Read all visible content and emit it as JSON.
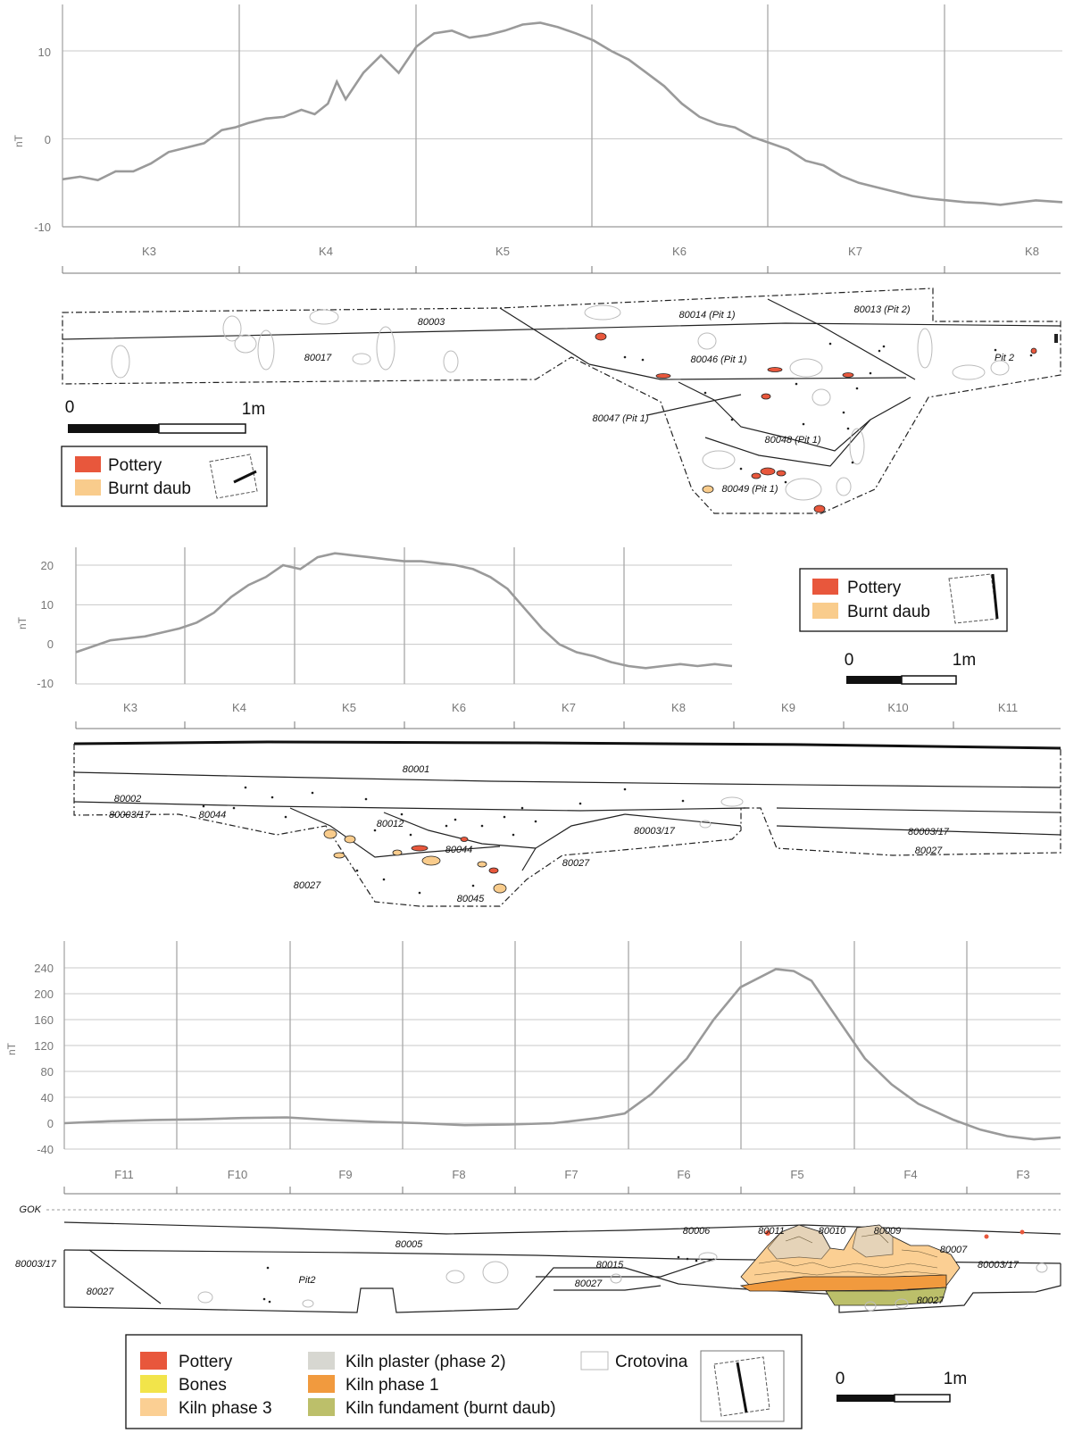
{
  "chart_data": [
    {
      "type": "line",
      "ylabel": "nT",
      "yticks": [
        10,
        0,
        -10
      ],
      "ylim": [
        -10,
        15
      ],
      "grid": true,
      "x": [
        0,
        0.2,
        0.4,
        0.6,
        0.8,
        1.0,
        1.2,
        1.4,
        1.6,
        1.8,
        1.95,
        2.1,
        2.3,
        2.5,
        2.7,
        2.85,
        3.0,
        3.1,
        3.2,
        3.4,
        3.6,
        3.8,
        4.0,
        4.2,
        4.4,
        4.6,
        4.8,
        5.0,
        5.2,
        5.4,
        5.6,
        5.8,
        6.0,
        6.2,
        6.4,
        6.6,
        6.8,
        7.0,
        7.2,
        7.4,
        7.6,
        7.8,
        8.0,
        8.2,
        8.4,
        8.6,
        8.8,
        9.0,
        9.2,
        9.4,
        9.6,
        9.8,
        10.0,
        10.2,
        10.4,
        10.6,
        11.0,
        11.3
      ],
      "values": [
        -4.6,
        -4.3,
        -4.7,
        -3.7,
        -3.7,
        -2.8,
        -1.5,
        -1.0,
        -0.5,
        1.0,
        1.3,
        1.8,
        2.3,
        2.5,
        3.3,
        2.8,
        4.0,
        6.5,
        4.5,
        7.5,
        9.5,
        7.5,
        10.5,
        12.0,
        12.3,
        11.5,
        11.8,
        12.3,
        13.0,
        13.2,
        12.7,
        12.0,
        11.2,
        10.0,
        9.0,
        7.5,
        6.0,
        4.0,
        2.5,
        1.7,
        1.3,
        0.2,
        -0.5,
        -1.2,
        -2.5,
        -3.0,
        -4.2,
        -5.0,
        -5.5,
        -6.0,
        -6.5,
        -6.8,
        -7.0,
        -7.2,
        -7.3,
        -7.5,
        -7.0,
        -7.2
      ]
    },
    {
      "type": "line",
      "ylabel": "nT",
      "yticks": [
        20,
        10,
        0,
        -10
      ],
      "ylim": [
        -10,
        24
      ],
      "grid": true,
      "x": [
        0,
        0.2,
        0.4,
        0.6,
        0.8,
        1.0,
        1.2,
        1.4,
        1.6,
        1.8,
        2.0,
        2.2,
        2.4,
        2.6,
        2.8,
        3.0,
        3.2,
        3.4,
        3.6,
        3.8,
        4.0,
        4.2,
        4.4,
        4.6,
        4.8,
        5.0,
        5.2,
        5.4,
        5.6,
        5.8,
        6.0,
        6.2,
        6.4,
        6.6,
        6.8,
        7.0,
        7.2,
        7.4,
        7.6
      ],
      "values": [
        -2,
        -0.5,
        1,
        1.5,
        2,
        3,
        4,
        5.5,
        8,
        12,
        15,
        17,
        20,
        19,
        22,
        23,
        22.5,
        22,
        21.5,
        21,
        21,
        20.5,
        20,
        19,
        17,
        14,
        9,
        4,
        0,
        -2,
        -3,
        -4.5,
        -5.5,
        -6,
        -5.5,
        -5,
        -5.5,
        -5,
        -5.5
      ]
    },
    {
      "type": "line",
      "ylabel": "nT",
      "yticks": [
        240,
        200,
        160,
        120,
        80,
        40,
        0,
        -40
      ],
      "ylim": [
        -40,
        250
      ],
      "grid": true,
      "x": [
        0,
        0.5,
        1.0,
        1.5,
        2.0,
        2.5,
        3.0,
        3.5,
        4.0,
        4.5,
        5.0,
        5.5,
        6.0,
        6.3,
        6.6,
        7.0,
        7.3,
        7.6,
        8.0,
        8.2,
        8.4,
        8.6,
        8.8,
        9.0,
        9.3,
        9.6,
        10.0,
        10.3,
        10.6,
        10.9,
        11.2
      ],
      "values": [
        0,
        3,
        5,
        6,
        8,
        9,
        5,
        2,
        0,
        -3,
        -2,
        0,
        8,
        15,
        45,
        100,
        160,
        210,
        238,
        235,
        220,
        180,
        140,
        100,
        60,
        30,
        5,
        -10,
        -20,
        -25,
        -22
      ]
    }
  ],
  "profile1": {
    "segments": [
      "K3",
      "K4",
      "K5",
      "K6",
      "K7",
      "K8"
    ],
    "labels": [
      "80003",
      "80014 (Pit 1)",
      "80013 (Pit 2)",
      "80017",
      "80046 (Pit 1)",
      "Pit 2",
      "80047 (Pit 1)",
      "80048 (Pit 1)",
      "80049 (Pit 1)"
    ],
    "scale": {
      "zero": "0",
      "end": "1m"
    },
    "legend": [
      "Pottery",
      "Burnt daub"
    ]
  },
  "profile2": {
    "segments": [
      "K3",
      "K4",
      "K5",
      "K6",
      "K7",
      "K8",
      "K9",
      "K10",
      "K11"
    ],
    "labels": [
      "80001",
      "80002",
      "80003/17",
      "80044",
      "80012",
      "80044",
      "80003/17",
      "80027",
      "80027",
      "80045",
      "80003/17",
      "80027"
    ],
    "scale": {
      "zero": "0",
      "end": "1m"
    },
    "legend": [
      "Pottery",
      "Burnt daub"
    ]
  },
  "profile3": {
    "segments": [
      "F11",
      "F10",
      "F9",
      "F8",
      "F7",
      "F6",
      "F5",
      "F4",
      "F3"
    ],
    "labels": [
      "GOK",
      "80006",
      "80011",
      "80010",
      "80009",
      "80005",
      "80007",
      "80003/17",
      "80003/17",
      "80015",
      "Pit2",
      "80027",
      "80027",
      "80027"
    ],
    "scale": {
      "zero": "0",
      "end": "1m"
    },
    "legend": [
      "Pottery",
      "Bones",
      "Kiln phase 3",
      "Kiln plaster (phase 2)",
      "Kiln phase 1",
      "Kiln fundament (burnt daub)",
      "Crotovina"
    ]
  },
  "colors": {
    "pottery": "#e8573c",
    "burnt_daub": "#f9cc8c",
    "bones": "#f2e44a",
    "kiln_phase3": "#fbcf93",
    "kiln_plaster": "#d7d7d1",
    "kiln_phase1": "#f19a3e",
    "kiln_fundament": "#bcbf6a",
    "crotovina": "#ffffff",
    "curve": "#9a9a9a"
  }
}
